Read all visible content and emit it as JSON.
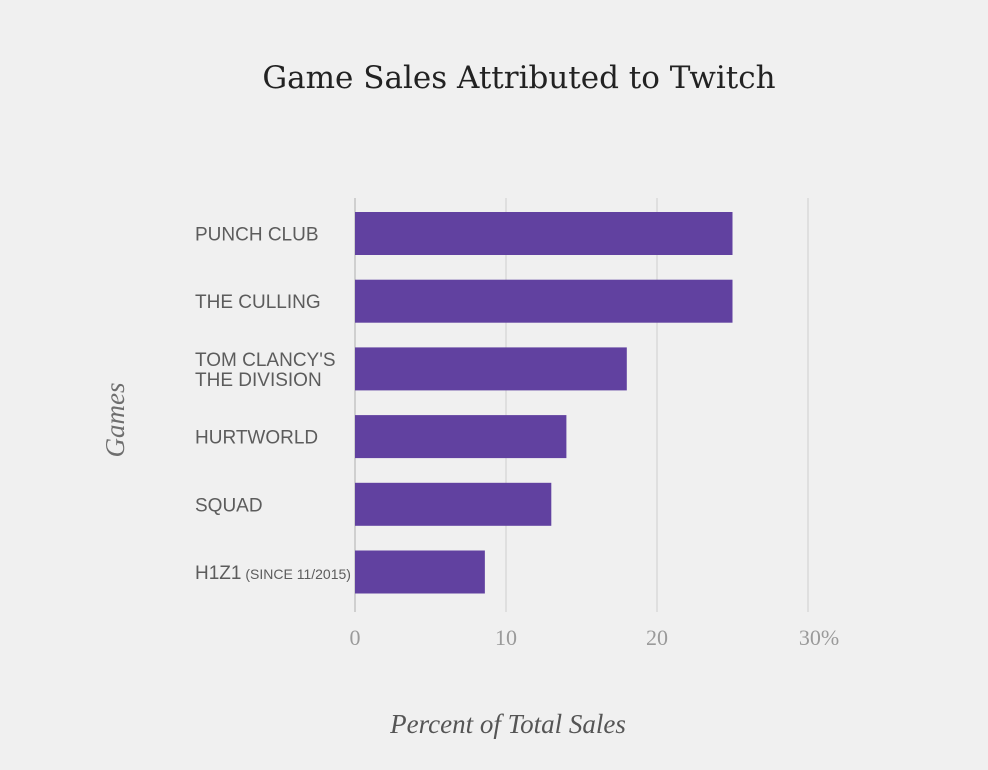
{
  "chart_data": {
    "type": "bar",
    "orientation": "horizontal",
    "title": "Game Sales Attributed to Twitch",
    "xlabel": "Percent of Total Sales",
    "ylabel": "Games",
    "categories": [
      {
        "lines": [
          {
            "text": "PUNCH CLUB"
          }
        ]
      },
      {
        "lines": [
          {
            "text": "THE CULLING"
          }
        ]
      },
      {
        "lines": [
          {
            "text": "TOM CLANCY'S"
          },
          {
            "text": "THE DIVISION"
          }
        ]
      },
      {
        "lines": [
          {
            "text": "HURTWORLD"
          }
        ]
      },
      {
        "lines": [
          {
            "text": "SQUAD"
          }
        ]
      },
      {
        "lines": [
          {
            "text": "H1Z1",
            "suffix": " (SINCE 11/2015)"
          }
        ]
      }
    ],
    "values": [
      25,
      25,
      18,
      14,
      13,
      8.6
    ],
    "xlim": [
      0,
      30
    ],
    "ticks": [
      0,
      10,
      20,
      30
    ],
    "tick_labels": [
      "0",
      "10",
      "20",
      "30%"
    ],
    "grid": true,
    "bar_color": "#6141a0"
  }
}
